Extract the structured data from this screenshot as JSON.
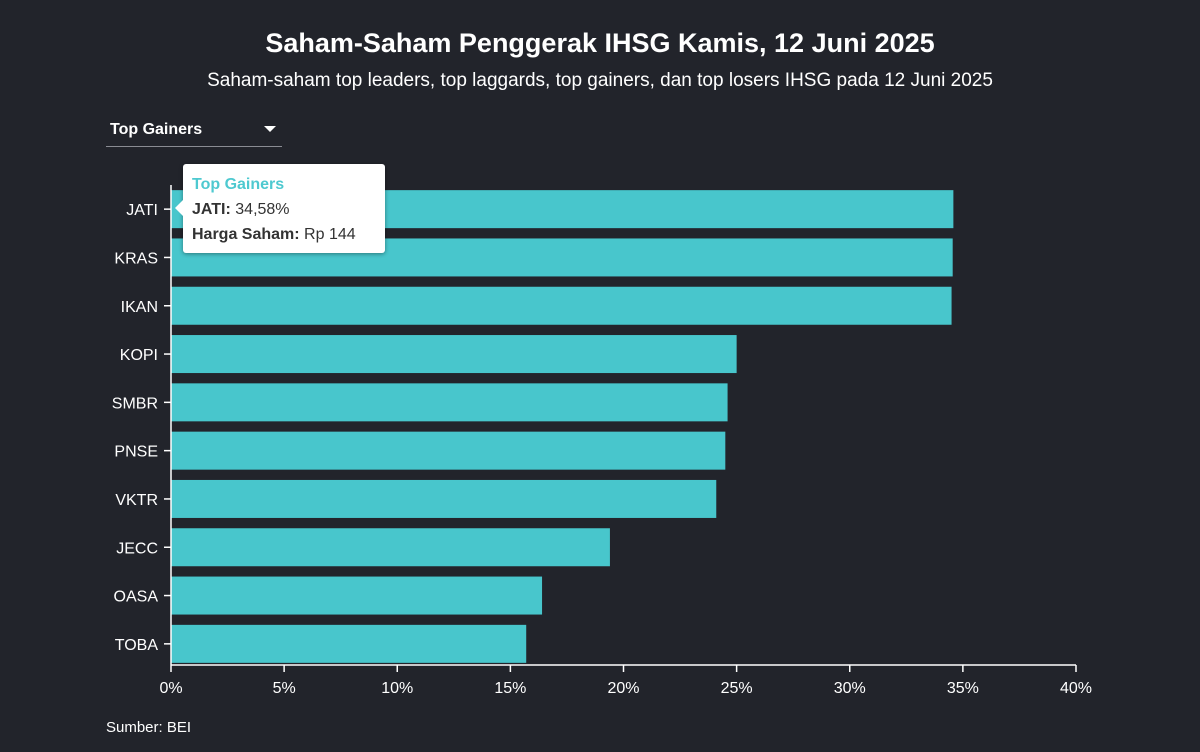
{
  "header": {
    "title": "Saham-Saham Penggerak IHSG Kamis, 12 Juni 2025",
    "subtitle": "Saham-saham top leaders, top laggards, top gainers, dan top losers IHSG pada 12 Juni 2025"
  },
  "dropdown": {
    "selected": "Top Gainers",
    "icon": "caret-down-icon"
  },
  "tooltip": {
    "title": "Top Gainers",
    "line1_key": "JATI:",
    "line1_value": "34,58%",
    "line2_key": "Harga Saham:",
    "line2_value": "Rp 144"
  },
  "source": "Sumber: BEI",
  "colors": {
    "background": "#22242b",
    "bar": "#48c6cc",
    "tooltip_title": "#4ec9d0"
  },
  "chart_data": {
    "type": "bar",
    "orientation": "horizontal",
    "categories": [
      "JATI",
      "KRAS",
      "IKAN",
      "KOPI",
      "SMBR",
      "PNSE",
      "VKTR",
      "JECC",
      "OASA",
      "TOBA"
    ],
    "values": [
      34.58,
      34.55,
      34.5,
      25.0,
      24.6,
      24.5,
      24.1,
      19.4,
      16.4,
      15.7
    ],
    "xlim": [
      0,
      40
    ],
    "xticks": [
      0,
      5,
      10,
      15,
      20,
      25,
      30,
      35,
      40
    ],
    "xtick_labels": [
      "0%",
      "5%",
      "10%",
      "15%",
      "20%",
      "25%",
      "30%",
      "35%",
      "40%"
    ],
    "grid": false
  }
}
